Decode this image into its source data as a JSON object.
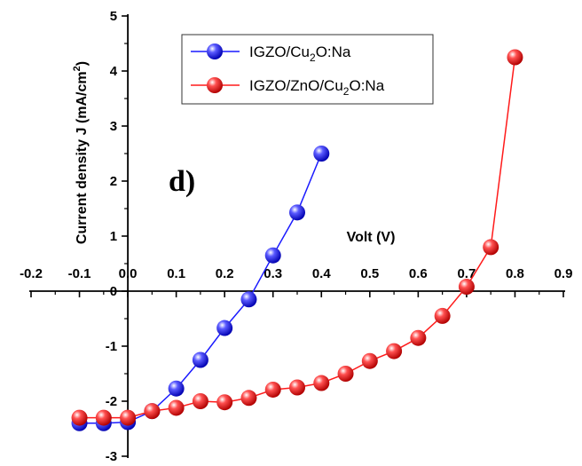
{
  "chart_data": {
    "type": "line",
    "title": "",
    "panel_label": "d)",
    "xlabel": "Volt (V)",
    "ylabel": "Current density J (mA/cm",
    "ylabel_sup": "2",
    "ylabel_end": ")",
    "xlim": [
      -0.2,
      0.9
    ],
    "ylim": [
      -3,
      5
    ],
    "x_ticks": [
      -0.2,
      -0.1,
      0.0,
      0.1,
      0.2,
      0.3,
      0.4,
      0.5,
      0.6,
      0.7,
      0.8,
      0.9
    ],
    "x_tick_labels": [
      "-0.2",
      "-0.1",
      "0.0",
      "0.1",
      "0.2",
      "0.3",
      "0.4",
      "0.5",
      "0.6",
      "0.7",
      "0.8",
      "0.9"
    ],
    "y_ticks": [
      -3,
      -2,
      -1,
      0,
      1,
      2,
      3,
      4,
      5
    ],
    "y_tick_labels": [
      "-3",
      "-2",
      "-1",
      "0",
      "1",
      "2",
      "3",
      "4",
      "5"
    ],
    "grid": false,
    "legend_position": "top-center",
    "series": [
      {
        "name_parts": [
          "IGZO/Cu",
          "2",
          "O:Na"
        ],
        "color": "#1a1aff",
        "x": [
          -0.1,
          -0.05,
          0.0,
          0.05,
          0.1,
          0.15,
          0.2,
          0.25,
          0.3,
          0.35,
          0.4
        ],
        "y": [
          -2.4,
          -2.4,
          -2.38,
          -2.18,
          -1.77,
          -1.25,
          -0.67,
          -0.15,
          0.65,
          1.43,
          2.5
        ]
      },
      {
        "name_parts": [
          "IGZO/ZnO/Cu",
          "2",
          "O:Na"
        ],
        "color": "#ff1a1a",
        "x": [
          -0.1,
          -0.05,
          0.0,
          0.05,
          0.1,
          0.15,
          0.2,
          0.25,
          0.3,
          0.35,
          0.4,
          0.45,
          0.5,
          0.55,
          0.6,
          0.65,
          0.7,
          0.75,
          0.8
        ],
        "y": [
          -2.3,
          -2.3,
          -2.3,
          -2.18,
          -2.12,
          -2.0,
          -2.02,
          -1.94,
          -1.79,
          -1.75,
          -1.67,
          -1.5,
          -1.27,
          -1.09,
          -0.85,
          -0.45,
          0.08,
          0.8,
          4.25
        ]
      }
    ]
  }
}
